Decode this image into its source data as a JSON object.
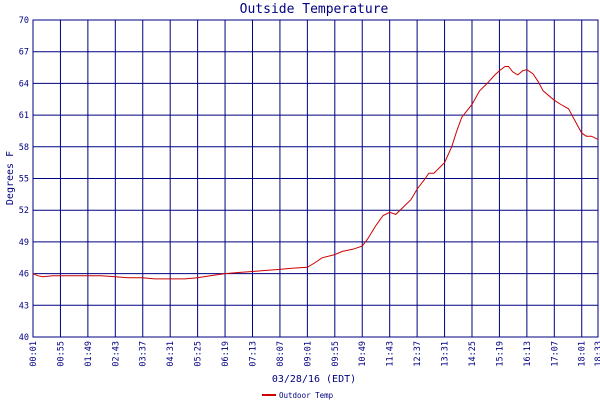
{
  "chart_data": {
    "type": "line",
    "title": "Outside Temperature",
    "xlabel": "03/28/16 (EDT)",
    "ylabel": "Degrees F",
    "ylim": [
      40,
      70
    ],
    "yticks": [
      "40",
      "43",
      "46",
      "49",
      "52",
      "55",
      "58",
      "61",
      "64",
      "67",
      "70"
    ],
    "xticks": [
      "00:01",
      "00:55",
      "01:49",
      "02:43",
      "03:37",
      "04:31",
      "05:25",
      "06:19",
      "07:13",
      "08:07",
      "09:01",
      "09:55",
      "10:49",
      "11:43",
      "12:37",
      "13:31",
      "14:25",
      "15:19",
      "16:13",
      "17:07",
      "18:01",
      "18:33"
    ],
    "grid": true,
    "legend_position": "bottom-left",
    "colors": {
      "series": "#cc0000",
      "axes": "#000080",
      "grid": "#000080"
    },
    "series": [
      {
        "name": "Outdoor Temp",
        "color": "#cc0000",
        "x": [
          "00:01",
          "00:10",
          "00:20",
          "00:40",
          "00:55",
          "01:20",
          "01:49",
          "02:15",
          "02:43",
          "03:10",
          "03:37",
          "04:00",
          "04:31",
          "05:00",
          "05:25",
          "05:50",
          "06:19",
          "06:45",
          "07:13",
          "07:40",
          "08:07",
          "08:30",
          "09:01",
          "09:15",
          "09:30",
          "09:55",
          "10:10",
          "10:30",
          "10:49",
          "11:00",
          "11:15",
          "11:30",
          "11:43",
          "11:55",
          "12:10",
          "12:25",
          "12:37",
          "12:50",
          "13:00",
          "13:10",
          "13:31",
          "13:45",
          "13:55",
          "14:05",
          "14:25",
          "14:40",
          "14:55",
          "15:10",
          "15:19",
          "15:30",
          "15:37",
          "15:45",
          "15:55",
          "16:05",
          "16:13",
          "16:25",
          "16:35",
          "16:45",
          "17:07",
          "17:20",
          "17:35",
          "18:01",
          "18:10",
          "18:20",
          "18:33"
        ],
        "values": [
          46.0,
          45.8,
          45.7,
          45.8,
          45.8,
          45.8,
          45.8,
          45.8,
          45.7,
          45.6,
          45.6,
          45.5,
          45.5,
          45.5,
          45.6,
          45.8,
          46.0,
          46.1,
          46.2,
          46.3,
          46.4,
          46.5,
          46.6,
          47.0,
          47.5,
          47.8,
          48.1,
          48.3,
          48.6,
          49.3,
          50.5,
          51.5,
          51.8,
          51.6,
          52.3,
          53.0,
          54.0,
          54.8,
          55.5,
          55.5,
          56.5,
          58.0,
          59.5,
          60.8,
          62.0,
          63.3,
          64.0,
          64.8,
          65.2,
          65.6,
          65.6,
          65.1,
          64.8,
          65.2,
          65.3,
          64.9,
          64.2,
          63.3,
          62.4,
          62.0,
          61.6,
          59.3,
          59.0,
          59.0,
          58.7
        ]
      }
    ]
  }
}
